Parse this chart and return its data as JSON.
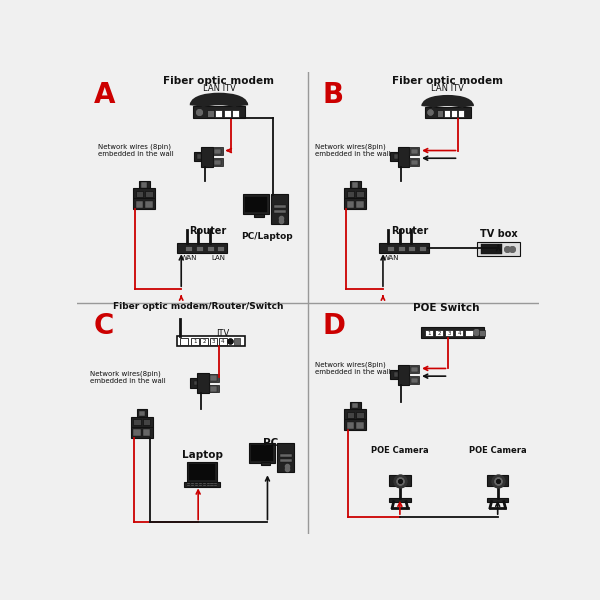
{
  "bg_color": "#f0f0f0",
  "black": "#111111",
  "dark": "#222222",
  "red": "#cc0000",
  "white": "#ffffff",
  "gray": "#666666",
  "mid": "#444444",
  "light": "#aaaaaa",
  "panel_A": {
    "label": "A",
    "title": "Fiber optic modem",
    "subtitle": "LAN ITV",
    "wall": "Network wires (8pin)\nembedded in the wall",
    "router": "Router",
    "pc": "PC/Laptop",
    "wan": "WAN",
    "lan": "LAN"
  },
  "panel_B": {
    "label": "B",
    "title": "Fiber optic modem",
    "subtitle": "LAN ITV",
    "wall": "Network wires(8pin)\nembedded in the wall",
    "router": "Router",
    "tvbox": "TV box",
    "wan": "WAN"
  },
  "panel_C": {
    "label": "C",
    "title": "Fiber optic modem/Router/Switch",
    "subtitle": "ITV",
    "wall": "Network wires(8pin)\nembedded in the wall",
    "laptop": "Laptop",
    "pc": "PC"
  },
  "panel_D": {
    "label": "D",
    "title": "POE Switch",
    "wall": "Network wires(8pin)\nembedded in the wall",
    "cam1": "POE Camera",
    "cam2": "POE Camera"
  }
}
